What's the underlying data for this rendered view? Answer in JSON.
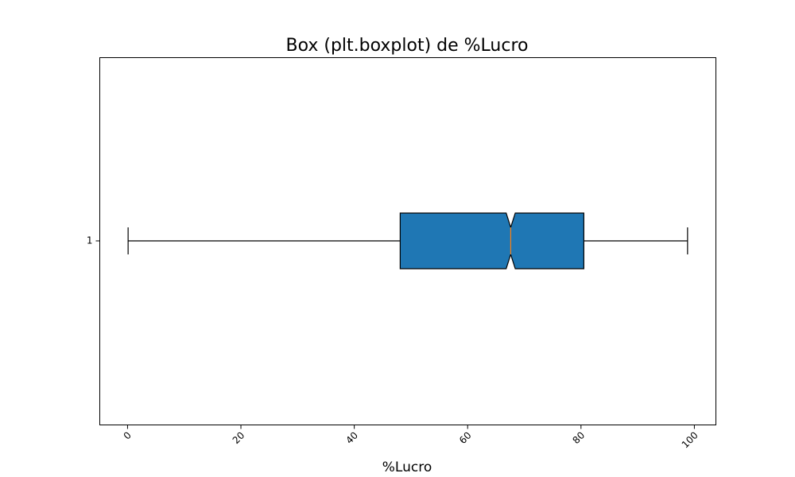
{
  "chart_data": {
    "type": "boxplot",
    "orientation": "horizontal",
    "notched": true,
    "title": "Box (plt.boxplot) de %Lucro",
    "xlabel": "%Lucro",
    "ylabel": "",
    "xlim": [
      -4.9,
      103.8
    ],
    "xticks": [
      0,
      20,
      40,
      60,
      80,
      100
    ],
    "xtick_labels": [
      "0",
      "20",
      "40",
      "60",
      "80",
      "100"
    ],
    "xtick_rotation": 45,
    "yticks": [
      1
    ],
    "ytick_labels": [
      "1"
    ],
    "grid": false,
    "series": [
      {
        "position": 1,
        "whisker_low": 0.1,
        "q1": 48.1,
        "median": 67.6,
        "q3": 80.5,
        "whisker_high": 98.8,
        "notch_low": 66.8,
        "notch_high": 68.4
      }
    ],
    "colors": {
      "box_fill": "#1f77b4",
      "median_line": "#ff7f0e",
      "lines": "#000000"
    }
  }
}
